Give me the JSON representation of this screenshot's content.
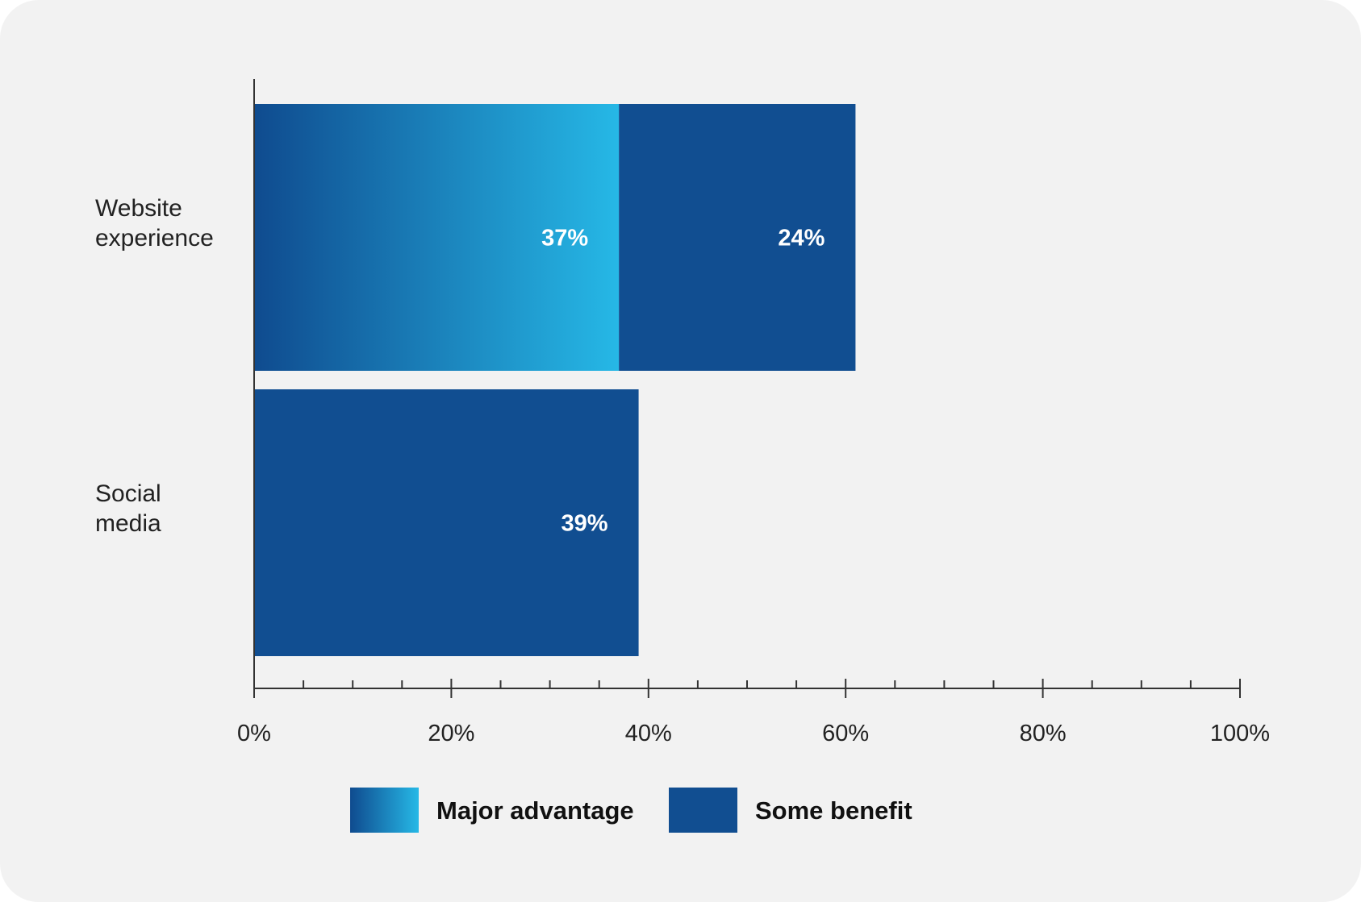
{
  "chart_data": {
    "type": "bar",
    "orientation": "horizontal",
    "stacked": true,
    "categories": [
      [
        "Website",
        "experience"
      ],
      [
        "Social",
        "media"
      ]
    ],
    "series": [
      {
        "name": "Major advantage",
        "values": [
          37,
          null
        ],
        "labels": [
          "37%",
          ""
        ],
        "color_start": "#0f4b8f",
        "color_end": "#26b8e6"
      },
      {
        "name": "Some benefit",
        "values": [
          24,
          39
        ],
        "labels": [
          "24%",
          "39%"
        ],
        "color": "#114e91"
      }
    ],
    "xlim": [
      0,
      100
    ],
    "xticks": [
      0,
      20,
      40,
      60,
      80,
      100
    ],
    "xtick_labels": [
      "0%",
      "20%",
      "40%",
      "60%",
      "80%",
      "100%"
    ],
    "minor_tick_step": 5,
    "legend_position": "bottom",
    "grid": false
  }
}
